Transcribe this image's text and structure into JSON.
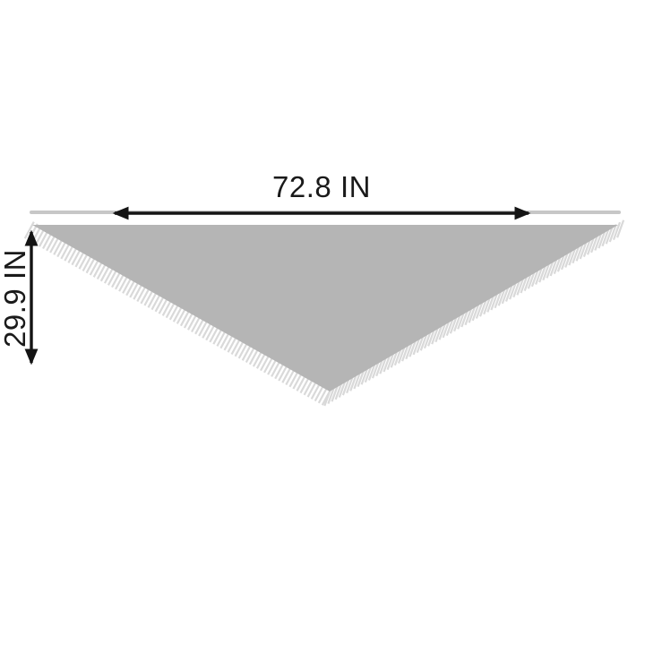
{
  "diagram": {
    "type": "product-dimension-diagram",
    "subject": "triangular shawl with fringe trim hanging from a bar",
    "width_label": "72.8 IN",
    "height_label": "29.9 IN",
    "units": "IN",
    "measurements": {
      "width_in": 72.8,
      "height_in": 29.9
    },
    "colors": {
      "background": "#ffffff",
      "fabric": "#b5b5b5",
      "fringe": "#d9d9d9",
      "hanger_bar": "#c7c7c7",
      "arrow": "#141414",
      "label_text": "#1a1a1a"
    }
  }
}
